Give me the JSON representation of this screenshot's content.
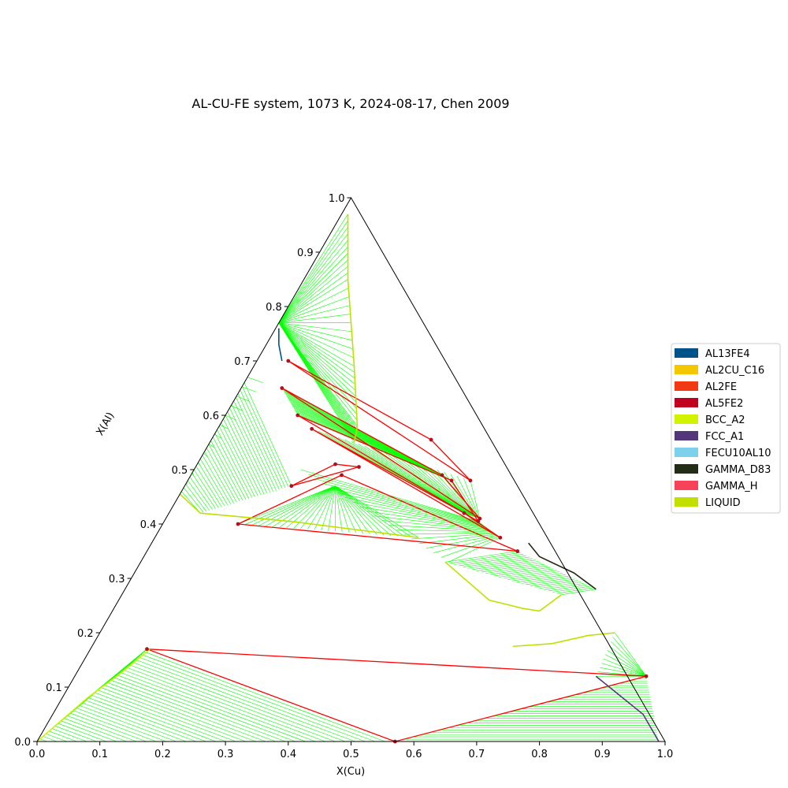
{
  "chart_data": {
    "type": "ternary phase diagram",
    "title": "AL-CU-FE system, 1073 K, 2024-08-17, Chen 2009",
    "xlabel": "X(Cu)",
    "ylabel": "X(Al)",
    "xlim": [
      0,
      1
    ],
    "ylim": [
      0,
      1
    ],
    "xticks": [
      "0.0",
      "0.1",
      "0.2",
      "0.3",
      "0.4",
      "0.5",
      "0.6",
      "0.7",
      "0.8",
      "0.9",
      "1.0"
    ],
    "yticks": [
      "0.0",
      "0.1",
      "0.2",
      "0.3",
      "0.4",
      "0.5",
      "0.6",
      "0.7",
      "0.8",
      "0.9",
      "1.0"
    ],
    "legend_position": "right",
    "legend": [
      {
        "name": "AL13FE4",
        "color": "#00538a"
      },
      {
        "name": "AL2CU_C16",
        "color": "#f4c800"
      },
      {
        "name": "AL2FE",
        "color": "#f13a13"
      },
      {
        "name": "AL5FE2",
        "color": "#c10020"
      },
      {
        "name": "BCC_A2",
        "color": "#d2f300"
      },
      {
        "name": "FCC_A1",
        "color": "#53377a"
      },
      {
        "name": "FECU10AL10",
        "color": "#7ed1ea"
      },
      {
        "name": "GAMMA_D83",
        "color": "#232c16"
      },
      {
        "name": "GAMMA_H",
        "color": "#f6435a"
      },
      {
        "name": "LIQUID",
        "color": "#c1e000"
      }
    ],
    "tieline_color": "#00ff00",
    "triangle_color": "#ff0000",
    "boundaries": [
      {
        "phase": "LIQUID",
        "points": [
          [
            0.01,
            0.97
          ],
          [
            0.07,
            0.85
          ],
          [
            0.16,
            0.69
          ],
          [
            0.22,
            0.58
          ],
          [
            0.23,
            0.55
          ]
        ]
      },
      {
        "phase": "LIQUID",
        "points": [
          [
            0.0,
            0.455
          ],
          [
            0.05,
            0.42
          ],
          [
            0.2,
            0.405
          ],
          [
            0.42,
            0.375
          ]
        ]
      },
      {
        "phase": "LIQUID",
        "points": [
          [
            0.485,
            0.33
          ],
          [
            0.59,
            0.26
          ],
          [
            0.65,
            0.245
          ],
          [
            0.68,
            0.24
          ],
          [
            0.7,
            0.27
          ]
        ]
      },
      {
        "phase": "LIQUID",
        "points": [
          [
            0.67,
            0.175
          ],
          [
            0.73,
            0.18
          ],
          [
            0.78,
            0.195
          ],
          [
            0.82,
            0.2
          ]
        ]
      },
      {
        "phase": "BCC_A2",
        "points": [
          [
            0.0,
            0.0
          ],
          [
            0.01,
            0.02
          ],
          [
            0.04,
            0.08
          ],
          [
            0.07,
            0.125
          ],
          [
            0.095,
            0.17
          ]
        ]
      },
      {
        "phase": "FCC_A1",
        "points": [
          [
            0.83,
            0.12
          ],
          [
            0.94,
            0.05
          ],
          [
            0.99,
            0.0
          ]
        ]
      },
      {
        "phase": "AL13FE4",
        "points": [
          [
            0.005,
            0.76
          ],
          [
            0.02,
            0.73
          ],
          [
            0.04,
            0.7
          ]
        ]
      },
      {
        "phase": "GAMMA_D83",
        "points": [
          [
            0.6,
            0.365
          ],
          [
            0.63,
            0.34
          ],
          [
            0.7,
            0.31
          ],
          [
            0.75,
            0.28
          ]
        ]
      }
    ],
    "tie_triangles": [
      {
        "points": [
          [
            0.05,
            0.7
          ],
          [
            0.35,
            0.555
          ],
          [
            0.45,
            0.48
          ]
        ]
      },
      {
        "points": [
          [
            0.065,
            0.65
          ],
          [
            0.4,
            0.49
          ],
          [
            0.5,
            0.41
          ]
        ]
      },
      {
        "points": [
          [
            0.115,
            0.6
          ],
          [
            0.42,
            0.48
          ],
          [
            0.5,
            0.405
          ]
        ]
      },
      {
        "points": [
          [
            0.15,
            0.575
          ],
          [
            0.47,
            0.42
          ],
          [
            0.55,
            0.375
          ]
        ]
      },
      {
        "points": [
          [
            0.17,
            0.47
          ],
          [
            0.22,
            0.51
          ],
          [
            0.26,
            0.505
          ]
        ]
      },
      {
        "points": [
          [
            0.12,
            0.4
          ],
          [
            0.24,
            0.49
          ],
          [
            0.59,
            0.35
          ]
        ]
      },
      {
        "points": [
          [
            0.09,
            0.17
          ],
          [
            0.57,
            0.0
          ],
          [
            0.91,
            0.12
          ]
        ]
      }
    ]
  }
}
